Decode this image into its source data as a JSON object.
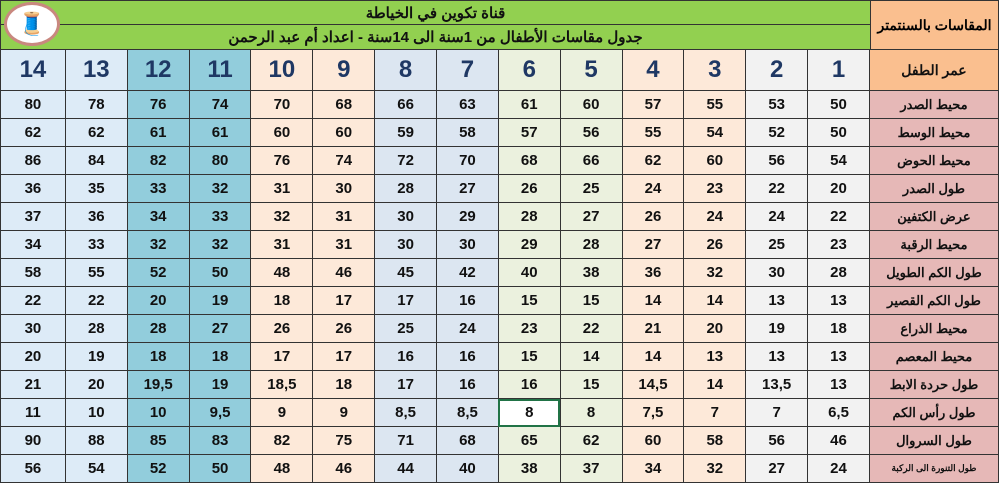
{
  "title_line1": "قناة تكوين في الخياطة",
  "title_line2": "جدول مقاسات الأطفال من 1سنة الى 14سنة - اعداد أم عبد الرحمن",
  "corner_label": "المقاسات بالسنتمتر",
  "age_label": "عمر الطفل",
  "logo_icon": "sewing-machine-icon",
  "colors": {
    "title_green": "#92d050",
    "header_orange": "#fabf8f",
    "label_pink": "#e6b8b7"
  },
  "ages": [
    "14",
    "13",
    "12",
    "11",
    "10",
    "9",
    "8",
    "7",
    "6",
    "5",
    "4",
    "3",
    "2",
    "1"
  ],
  "column_colors": [
    "#ddebf7",
    "#ddebf7",
    "#92cddc",
    "#92cddc",
    "#fde9d9",
    "#fde9d9",
    "#dce6f1",
    "#dce6f1",
    "#ebf1de",
    "#ebf1de",
    "#fde9d9",
    "#fde9d9",
    "#f2f2f2",
    "#f2f2f2"
  ],
  "rows": [
    {
      "label": "محيط الصدر",
      "values": [
        "80",
        "78",
        "76",
        "74",
        "70",
        "68",
        "66",
        "63",
        "61",
        "60",
        "57",
        "55",
        "53",
        "50"
      ]
    },
    {
      "label": "محيط الوسط",
      "values": [
        "62",
        "62",
        "61",
        "61",
        "60",
        "60",
        "59",
        "58",
        "57",
        "56",
        "55",
        "54",
        "52",
        "50"
      ]
    },
    {
      "label": "محيط الحوض",
      "values": [
        "86",
        "84",
        "82",
        "80",
        "76",
        "74",
        "72",
        "70",
        "68",
        "66",
        "62",
        "60",
        "56",
        "54"
      ]
    },
    {
      "label": "طول الصدر",
      "values": [
        "36",
        "35",
        "33",
        "32",
        "31",
        "30",
        "28",
        "27",
        "26",
        "25",
        "24",
        "23",
        "22",
        "20"
      ]
    },
    {
      "label": "عرض الكتفين",
      "values": [
        "37",
        "36",
        "34",
        "33",
        "32",
        "31",
        "30",
        "29",
        "28",
        "27",
        "26",
        "24",
        "24",
        "22"
      ]
    },
    {
      "label": "محيط الرقبة",
      "values": [
        "34",
        "33",
        "32",
        "32",
        "31",
        "31",
        "30",
        "30",
        "29",
        "28",
        "27",
        "26",
        "25",
        "23"
      ]
    },
    {
      "label": "طول الكم الطويل",
      "values": [
        "58",
        "55",
        "52",
        "50",
        "48",
        "46",
        "45",
        "42",
        "40",
        "38",
        "36",
        "32",
        "30",
        "28"
      ]
    },
    {
      "label": "طول الكم القصير",
      "values": [
        "22",
        "22",
        "20",
        "19",
        "18",
        "17",
        "17",
        "16",
        "15",
        "15",
        "14",
        "14",
        "13",
        "13"
      ]
    },
    {
      "label": "محيط الذراع",
      "values": [
        "30",
        "28",
        "28",
        "27",
        "26",
        "26",
        "25",
        "24",
        "23",
        "22",
        "21",
        "20",
        "19",
        "18"
      ]
    },
    {
      "label": "محيط المعصم",
      "values": [
        "20",
        "19",
        "18",
        "18",
        "17",
        "17",
        "16",
        "16",
        "15",
        "14",
        "14",
        "13",
        "13",
        "13"
      ]
    },
    {
      "label": "طول حردة الابط",
      "values": [
        "21",
        "20",
        "19,5",
        "19",
        "18,5",
        "18",
        "17",
        "16",
        "16",
        "15",
        "14,5",
        "14",
        "13,5",
        "13"
      ]
    },
    {
      "label": "طول رأس الكم",
      "values": [
        "11",
        "10",
        "10",
        "9,5",
        "9",
        "9",
        "8,5",
        "8,5",
        "8",
        "8",
        "7,5",
        "7",
        "7",
        "6,5"
      ]
    },
    {
      "label": "طول السروال",
      "values": [
        "90",
        "88",
        "85",
        "83",
        "82",
        "75",
        "71",
        "68",
        "65",
        "62",
        "60",
        "58",
        "56",
        "46"
      ]
    },
    {
      "label": "طول التنورة الى الركبة",
      "values": [
        "56",
        "54",
        "52",
        "50",
        "48",
        "46",
        "44",
        "40",
        "38",
        "37",
        "34",
        "32",
        "27",
        "24"
      ]
    }
  ]
}
